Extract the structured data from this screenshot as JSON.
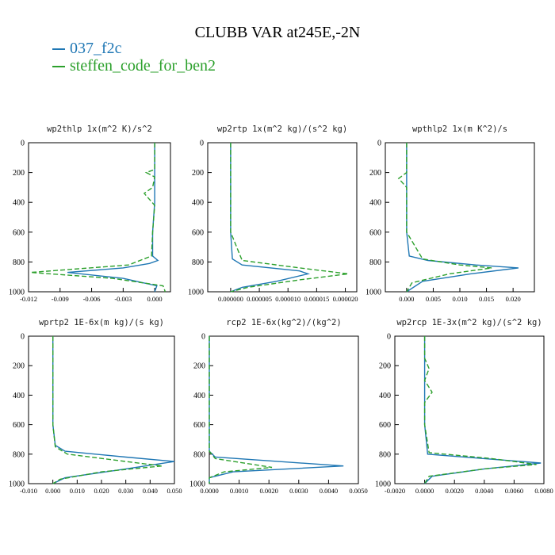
{
  "title": "CLUBB VAR at245E,-2N",
  "legend": [
    {
      "label": "037_f2c",
      "color": "#1f77b4",
      "dash": "solid"
    },
    {
      "label": "steffen_code_for_ben2",
      "color": "#2ca02c",
      "dash": "dashed"
    }
  ],
  "chart_data": [
    {
      "type": "line",
      "title": "wp2thlp   1x(m^2 K)/s^2",
      "ylim": [
        1000,
        0
      ],
      "yticks": [
        "0",
        "200",
        "400",
        "600",
        "800",
        "1000"
      ],
      "xlim": [
        -0.012,
        0.0015
      ],
      "xticks": [
        -0.012,
        -0.009,
        -0.006,
        -0.003,
        0.0
      ],
      "xticklabels": [
        "-0.012",
        "-0.009",
        "-0.006",
        "-0.003",
        "0.000"
      ],
      "series": [
        {
          "name": "037_f2c",
          "x": [
            0,
            0,
            0,
            -0.0002,
            -0.0002,
            0.0003,
            -0.0005,
            -0.003,
            -0.0083,
            -0.003,
            0.0002,
            0
          ],
          "y": [
            0,
            200,
            400,
            600,
            760,
            790,
            810,
            840,
            870,
            910,
            960,
            1000
          ]
        },
        {
          "name": "steffen_code_for_ben2",
          "x": [
            0,
            0,
            -0.0008,
            0,
            -0.0002,
            -0.001,
            0,
            -0.0002,
            -0.0003,
            -0.0025,
            -0.0118,
            -0.004,
            0.0008,
            0.001
          ],
          "y": [
            0,
            180,
            200,
            230,
            300,
            340,
            420,
            600,
            760,
            820,
            870,
            910,
            960,
            1000
          ]
        }
      ]
    },
    {
      "type": "line",
      "title": "wp2rtp   1x(m^2 kg)/(s^2 kg)",
      "ylim": [
        1000,
        0
      ],
      "yticks": [
        "0",
        "200",
        "400",
        "600",
        "800",
        "1000"
      ],
      "xlim": [
        -4e-06,
        2.2e-05
      ],
      "xticks": [
        0.0,
        5e-06,
        1e-05,
        1.5e-05,
        2e-05
      ],
      "xticklabels": [
        "0.000000",
        "0.000005",
        "0.000010",
        "0.000015",
        "0.000020"
      ],
      "series": [
        {
          "name": "037_f2c",
          "x": [
            0,
            0,
            0,
            0,
            3e-07,
            2e-06,
            1.2e-05,
            1.35e-05,
            8e-06,
            2e-06,
            0
          ],
          "y": [
            0,
            200,
            400,
            600,
            780,
            820,
            860,
            880,
            930,
            970,
            1000
          ]
        },
        {
          "name": "steffen_code_for_ben2",
          "x": [
            0,
            0,
            0,
            0,
            2e-06,
            1.2e-05,
            2.05e-05,
            1.2e-05,
            3e-06,
            0
          ],
          "y": [
            0,
            200,
            400,
            600,
            790,
            840,
            880,
            920,
            970,
            1000
          ]
        }
      ]
    },
    {
      "type": "line",
      "title": "wpthlp2   1x(m K^2)/s",
      "ylim": [
        1000,
        0
      ],
      "yticks": [
        "0",
        "200",
        "400",
        "600",
        "800",
        "1000"
      ],
      "xlim": [
        -0.004,
        0.024
      ],
      "xticks": [
        0.0,
        0.005,
        0.01,
        0.015,
        0.02
      ],
      "xticklabels": [
        "0.000",
        "0.005",
        "0.010",
        "0.015",
        "0.020"
      ],
      "series": [
        {
          "name": "037_f2c",
          "x": [
            0,
            0,
            0,
            0,
            0.0005,
            0.004,
            0.013,
            0.021,
            0.012,
            0.003,
            0
          ],
          "y": [
            0,
            200,
            400,
            600,
            760,
            790,
            820,
            840,
            880,
            930,
            1000
          ]
        },
        {
          "name": "steffen_code_for_ben2",
          "x": [
            0,
            0,
            -0.0015,
            0,
            0,
            0.003,
            0.01,
            0.016,
            0.008,
            0.001,
            0
          ],
          "y": [
            0,
            200,
            240,
            300,
            600,
            780,
            820,
            840,
            880,
            940,
            1000
          ]
        }
      ]
    },
    {
      "type": "line",
      "title": "wprtp2   1E-6x(m kg)/(s kg)",
      "ylim": [
        1000,
        0
      ],
      "yticks": [
        "0",
        "200",
        "400",
        "600",
        "800",
        "1000"
      ],
      "xlim": [
        -0.01,
        0.05
      ],
      "xticks": [
        -0.01,
        0.0,
        0.01,
        0.02,
        0.03,
        0.04,
        0.05
      ],
      "xticklabels": [
        "-0.010",
        "0.000",
        "0.010",
        "0.020",
        "0.030",
        "0.040",
        "0.050"
      ],
      "series": [
        {
          "name": "037_f2c",
          "x": [
            0,
            0,
            0,
            0.001,
            0.005,
            0.03,
            0.05,
            0.03,
            0.005,
            0
          ],
          "y": [
            0,
            200,
            600,
            740,
            780,
            820,
            850,
            900,
            960,
            1000
          ]
        },
        {
          "name": "steffen_code_for_ben2",
          "x": [
            0,
            0,
            0,
            0.001,
            0.006,
            0.03,
            0.045,
            0.02,
            0.003,
            0
          ],
          "y": [
            0,
            200,
            600,
            750,
            800,
            850,
            880,
            920,
            970,
            1000
          ]
        }
      ]
    },
    {
      "type": "line",
      "title": "rcp2   1E-6x(kg^2)/(kg^2)",
      "ylim": [
        1000,
        0
      ],
      "yticks": [
        "0",
        "200",
        "400",
        "600",
        "800",
        "1000"
      ],
      "xlim": [
        0.0,
        0.005
      ],
      "xticks": [
        0.0,
        0.001,
        0.002,
        0.003,
        0.004,
        0.005
      ],
      "xticklabels": [
        "0.0000",
        "0.0010",
        "0.0020",
        "0.0030",
        "0.0040",
        "0.0050"
      ],
      "series": [
        {
          "name": "037_f2c",
          "x": [
            0,
            0,
            0,
            0.0002,
            0.0045,
            0.0008,
            0,
            0
          ],
          "y": [
            0,
            200,
            780,
            820,
            880,
            920,
            960,
            1000
          ]
        },
        {
          "name": "steffen_code_for_ben2",
          "x": [
            0,
            0,
            0,
            0.0002,
            0.0021,
            0.0005,
            0,
            0
          ],
          "y": [
            0,
            200,
            780,
            830,
            890,
            920,
            960,
            1000
          ]
        }
      ]
    },
    {
      "type": "line",
      "title": "wp2rcp   1E-3x(m^2 kg)/(s^2 kg)",
      "ylim": [
        1000,
        0
      ],
      "yticks": [
        "0",
        "200",
        "400",
        "600",
        "800",
        "1000"
      ],
      "xlim": [
        -0.002,
        0.008
      ],
      "xticks": [
        -0.002,
        0.0,
        0.002,
        0.004,
        0.006,
        0.008
      ],
      "xticklabels": [
        "-0.0020",
        "0.0000",
        "0.0020",
        "0.0040",
        "0.0060",
        "0.0080"
      ],
      "series": [
        {
          "name": "037_f2c",
          "x": [
            0,
            0,
            0,
            0,
            0.0002,
            0.004,
            0.0078,
            0.004,
            0.0005,
            0
          ],
          "y": [
            0,
            200,
            400,
            600,
            800,
            830,
            860,
            900,
            950,
            1000
          ]
        },
        {
          "name": "steffen_code_for_ben2",
          "x": [
            0,
            0,
            0.0003,
            0,
            0.0005,
            0,
            0,
            0.0003,
            0.0045,
            0.0075,
            0.004,
            0.0003,
            0
          ],
          "y": [
            0,
            150,
            220,
            300,
            380,
            450,
            600,
            790,
            830,
            870,
            900,
            950,
            1000
          ]
        }
      ]
    }
  ]
}
